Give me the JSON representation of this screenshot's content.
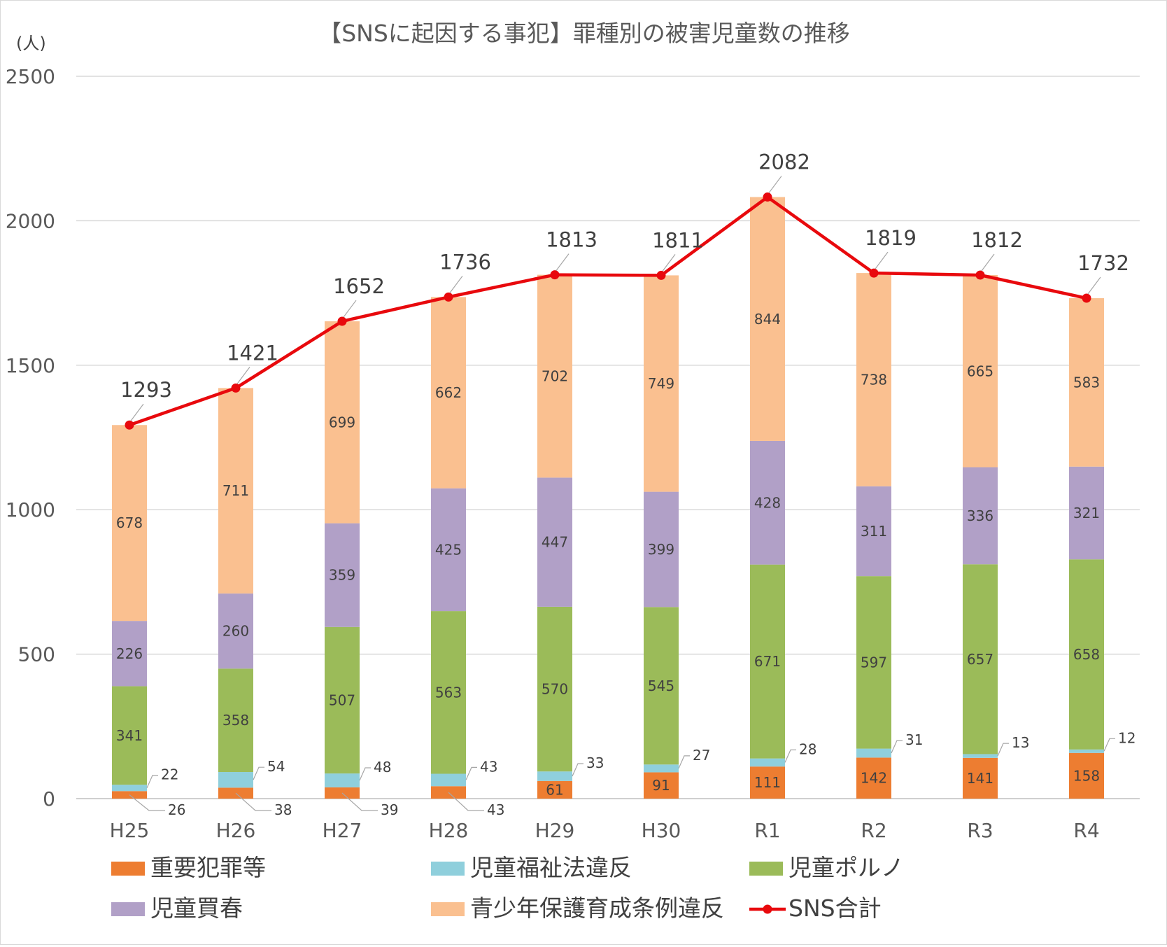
{
  "chart_data": {
    "type": "bar",
    "stacked": true,
    "title": "【SNSに起因する事犯】罪種別の被害児童数の推移",
    "ylabel": "(人)",
    "xlabel": "",
    "ylim": [
      0,
      2500
    ],
    "yticks": [
      0,
      500,
      1000,
      1500,
      2000,
      2500
    ],
    "grid": true,
    "legend_position": "bottom",
    "categories": [
      "H25",
      "H26",
      "H27",
      "H28",
      "H29",
      "H30",
      "R1",
      "R2",
      "R3",
      "R4"
    ],
    "series": [
      {
        "name": "重要犯罪等",
        "color": "#ed7d31",
        "values": [
          26,
          38,
          39,
          43,
          61,
          91,
          111,
          142,
          141,
          158
        ]
      },
      {
        "name": "児童福祉法違反",
        "color": "#8fcfdc",
        "values": [
          22,
          54,
          48,
          43,
          33,
          27,
          28,
          31,
          13,
          12
        ]
      },
      {
        "name": "児童ポルノ",
        "color": "#9bbb59",
        "values": [
          341,
          358,
          507,
          563,
          570,
          545,
          671,
          597,
          657,
          658
        ]
      },
      {
        "name": "児童買春",
        "color": "#b1a0c7",
        "values": [
          226,
          260,
          359,
          425,
          447,
          399,
          428,
          311,
          336,
          321
        ]
      },
      {
        "name": "青少年保護育成条例違反",
        "color": "#fac090",
        "values": [
          678,
          711,
          699,
          662,
          702,
          749,
          844,
          738,
          665,
          583
        ]
      }
    ],
    "line_series": {
      "name": "SNS合計",
      "color": "#e8090d",
      "values": [
        1293,
        1421,
        1652,
        1736,
        1813,
        1811,
        2082,
        1819,
        1812,
        1732
      ]
    }
  }
}
